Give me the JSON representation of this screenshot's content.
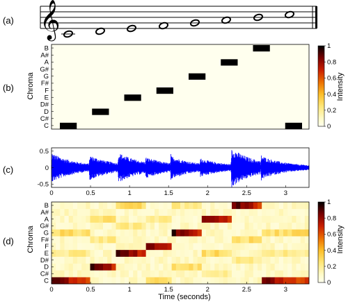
{
  "panel_labels": [
    "(a)",
    "(b)",
    "(c)",
    "(d)"
  ],
  "chart_data": [
    {
      "panel": "(a)",
      "type": "other",
      "description_kind": "staff",
      "notes": [
        "C",
        "D",
        "E",
        "F",
        "G",
        "A",
        "B",
        "C"
      ]
    },
    {
      "panel": "(b)",
      "type": "heatmap",
      "ylabel": "Chroma",
      "yticks": [
        "C",
        "C#",
        "D",
        "D#",
        "E",
        "F",
        "F#",
        "G",
        "G#",
        "A",
        "A#",
        "B"
      ],
      "x_segments": 8,
      "active_chroma_per_segment": [
        "C",
        "D",
        "E",
        "F",
        "G",
        "A",
        "B",
        "C"
      ],
      "colorbar": {
        "label": "Intensity",
        "ticks": [
          "0",
          "0.2",
          "0.4",
          "0.6",
          "0.8",
          "1"
        ],
        "range": [
          0,
          1
        ]
      }
    },
    {
      "panel": "(c)",
      "type": "line",
      "yticks": [
        "-0.5",
        "0",
        "0.5"
      ],
      "ylim": [
        -0.6,
        0.6
      ],
      "xlim": [
        0,
        3.3
      ],
      "color": "#0000ff",
      "note_onsets": [
        0,
        0.48,
        0.85,
        1.2,
        1.52,
        1.9,
        2.3,
        2.68,
        3.0
      ],
      "peak_amplitudes": [
        0.42,
        0.36,
        0.44,
        0.3,
        0.34,
        0.26,
        0.58,
        0.34
      ]
    },
    {
      "panel": "(d)",
      "type": "heatmap",
      "ylabel": "Chroma",
      "xlabel": "Time (seconds)",
      "xticks": [
        "0",
        "0.5",
        "1",
        "1.5",
        "2",
        "2.5",
        "3"
      ],
      "xlim": [
        0,
        3.3
      ],
      "yticks": [
        "C",
        "C#",
        "D",
        "D#",
        "E",
        "F",
        "F#",
        "G",
        "G#",
        "A",
        "A#",
        "B"
      ],
      "colorbar": {
        "label": "Intensity",
        "ticks": [
          "0",
          "0.2",
          "0.4",
          "0.6",
          "0.8",
          "1"
        ],
        "range": [
          0,
          1
        ]
      },
      "note_segments_seconds": [
        [
          0,
          0.5
        ],
        [
          0.5,
          0.85
        ],
        [
          0.85,
          1.2
        ],
        [
          1.2,
          1.55
        ],
        [
          1.55,
          1.9
        ],
        [
          1.9,
          2.3
        ],
        [
          2.3,
          2.68
        ],
        [
          2.68,
          3.3
        ]
      ],
      "dominant_chroma": [
        "C",
        "D",
        "E",
        "F",
        "G",
        "A",
        "B",
        "C"
      ]
    }
  ]
}
